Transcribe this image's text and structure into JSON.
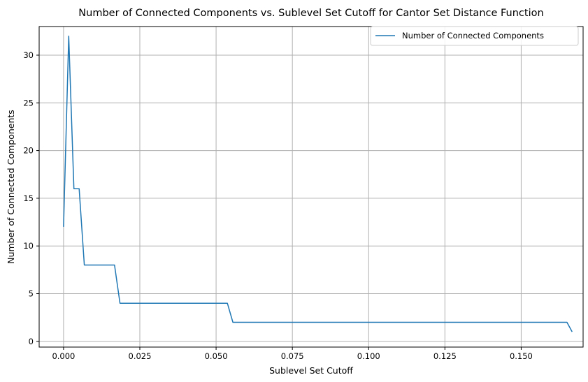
{
  "chart_data": {
    "type": "line",
    "title": "Number of Connected Components vs. Sublevel Set Cutoff for Cantor Set Distance Function",
    "xlabel": "Sublevel Set Cutoff",
    "ylabel": "Number of Connected Components",
    "xlim": [
      -0.008,
      0.1703
    ],
    "ylim": [
      -0.6,
      33.0
    ],
    "xticks": [
      0.0,
      0.025,
      0.05,
      0.075,
      0.1,
      0.125,
      0.15
    ],
    "xtick_labels": [
      "0.000",
      "0.025",
      "0.050",
      "0.075",
      "0.100",
      "0.125",
      "0.150"
    ],
    "yticks": [
      0,
      5,
      10,
      15,
      20,
      25,
      30
    ],
    "ytick_labels": [
      "0",
      "5",
      "10",
      "15",
      "20",
      "25",
      "30"
    ],
    "grid": true,
    "legend": "upper-right",
    "series": [
      {
        "name": "Number of Connected Components",
        "color": "#1f77b4",
        "x": [
          0.0,
          0.0017,
          0.0034,
          0.0051,
          0.0068,
          0.0167,
          0.0185,
          0.0537,
          0.0555,
          0.165,
          0.1667
        ],
        "y": [
          12,
          32,
          16,
          16,
          8,
          8,
          4,
          4,
          2,
          2,
          1
        ]
      }
    ]
  }
}
